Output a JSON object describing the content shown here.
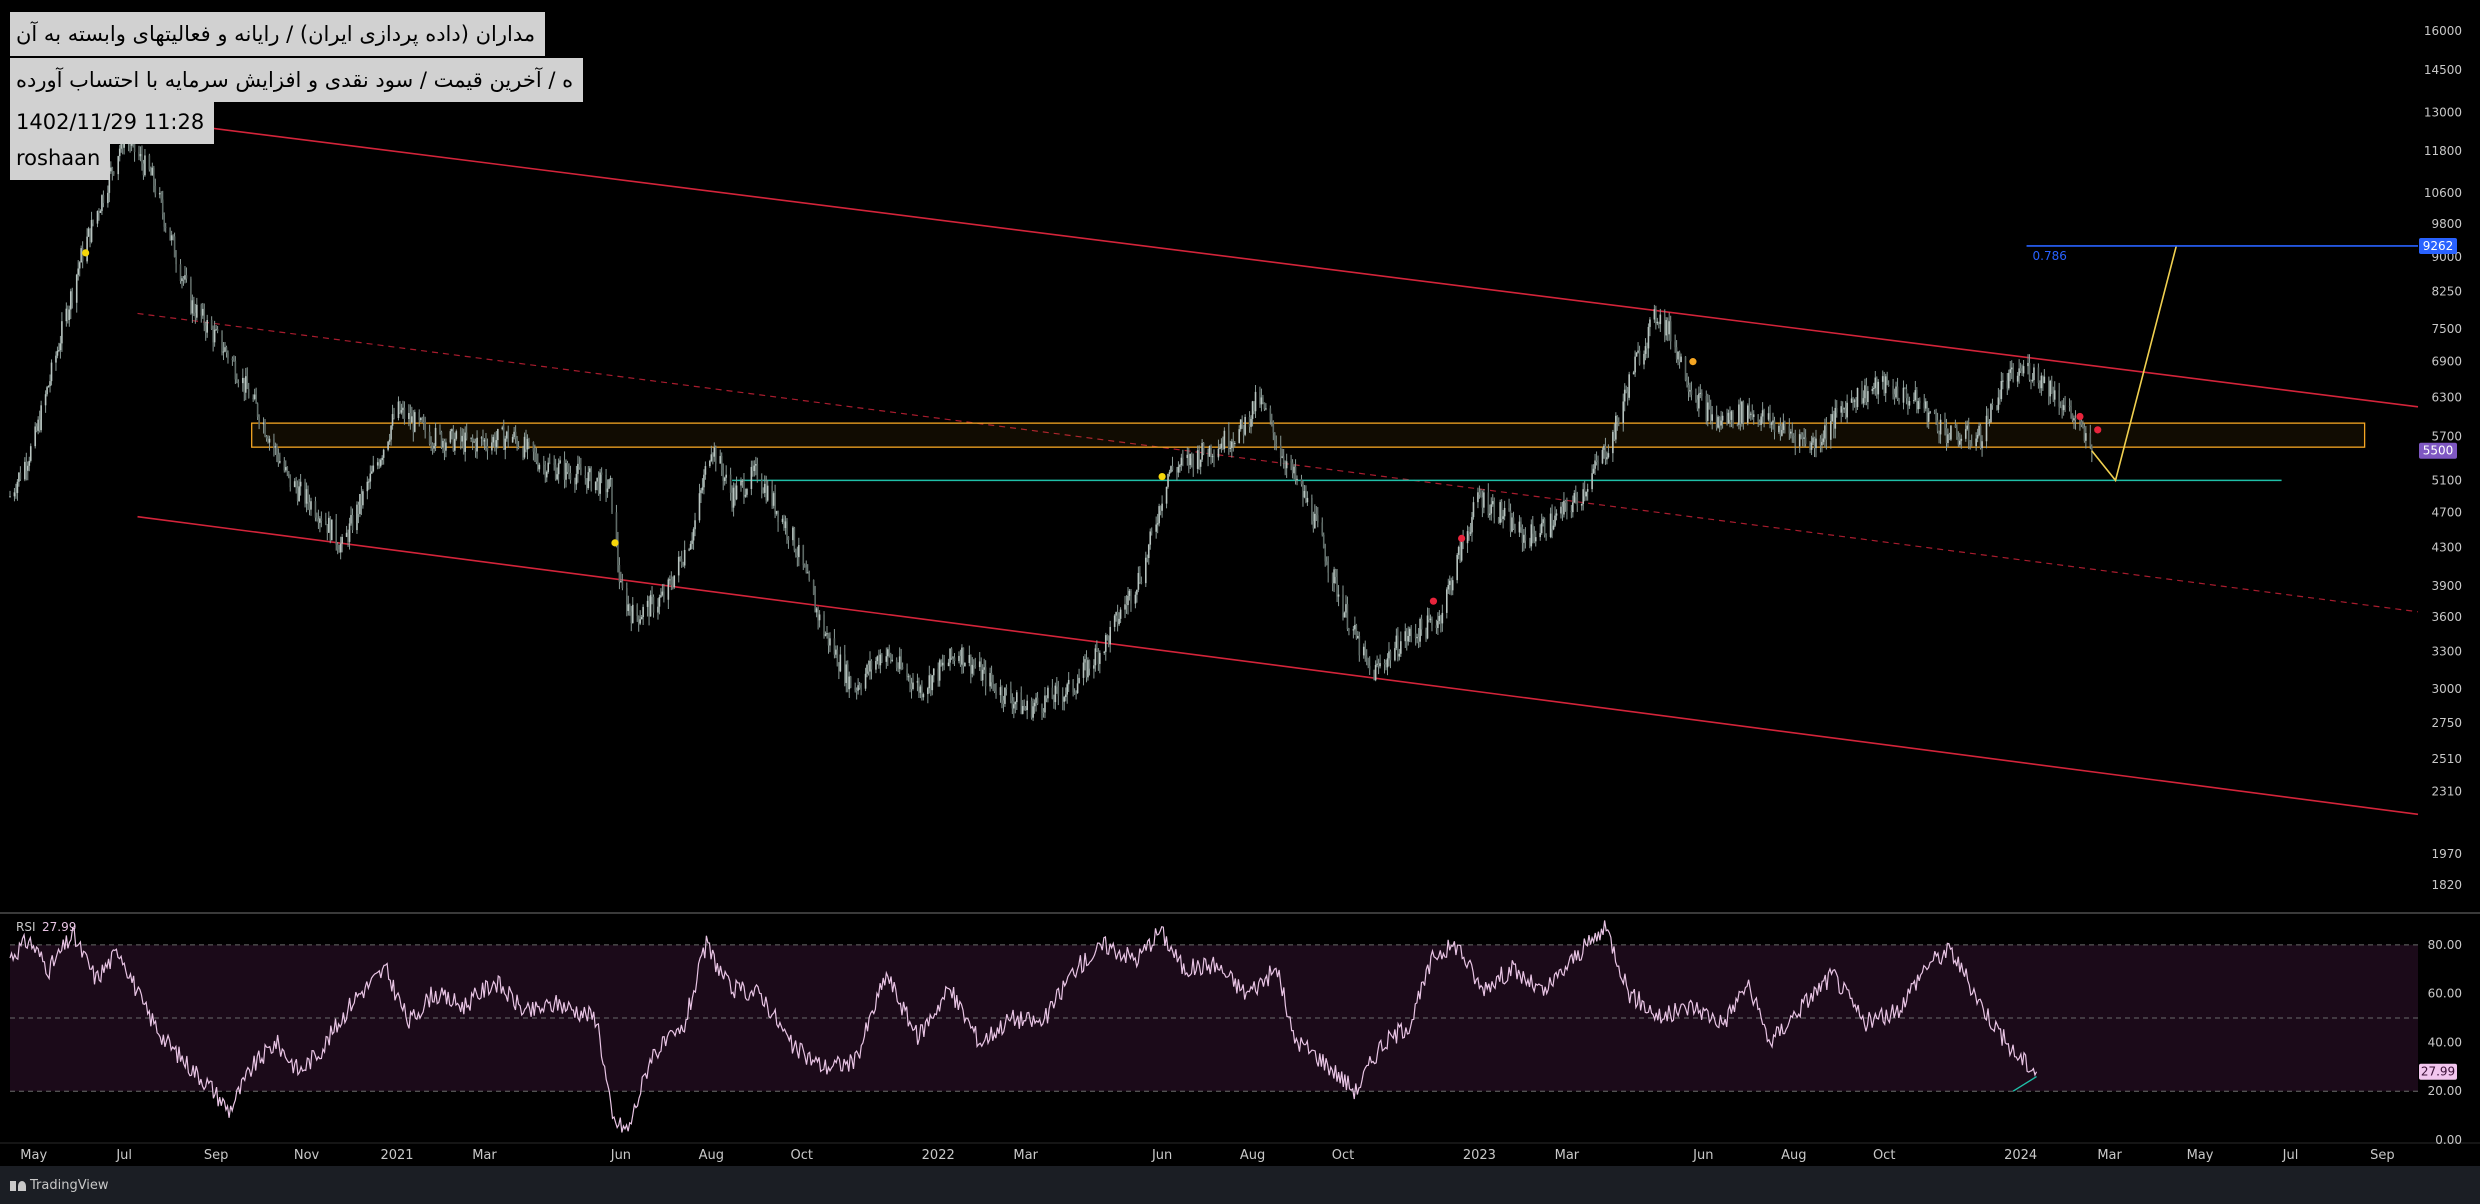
{
  "overlay": {
    "line1": "مداران (داده پردازی ایران) / رایانه و فعالیتهای وابسته به آن",
    "line2": "ه / آخرین قیمت / سود نقدی و افزایش سرمایه با احتساب آورده",
    "line3": "1402/11/29 11:28",
    "line4": "roshaan"
  },
  "brand": {
    "name": "TradingView"
  },
  "colors": {
    "background": "#000000",
    "candles": "#8a9a96",
    "channel": "#d3243a",
    "support_line": "#1fbfa8",
    "zone_border": "#f5a623",
    "projection": "#f0d050",
    "fib_line": "#2962ff",
    "rsi_line": "#e8c4e4",
    "rsi_band": "#1b0a19"
  },
  "chart_data": [
    {
      "type": "line",
      "scale": "log",
      "ylim": [
        1700,
        16800
      ],
      "yticks": [
        16000,
        14500,
        13000,
        11800,
        10600,
        9800,
        9000,
        8250,
        7500,
        6900,
        6300,
        5700,
        5100,
        4700,
        4300,
        3900,
        3600,
        3300,
        3000,
        2750,
        2510,
        2310,
        1970,
        1820
      ],
      "xticks": [
        "May",
        "Jul",
        "Sep",
        "Nov",
        "2021",
        "Mar",
        "Jun",
        "Aug",
        "Oct",
        "2022",
        "Mar",
        "Jun",
        "Aug",
        "Oct",
        "2023",
        "Mar",
        "Jun",
        "Aug",
        "Oct",
        "2024",
        "Mar",
        "May",
        "Jul",
        "Sep"
      ],
      "x_range": [
        "2020-04-15",
        "2024-09-25"
      ],
      "price_path": [
        [
          "2020-04-15",
          4900
        ],
        [
          "2020-05-01",
          5600
        ],
        [
          "2020-06-01",
          8900
        ],
        [
          "2020-07-01",
          12300
        ],
        [
          "2020-07-20",
          11000
        ],
        [
          "2020-08-15",
          8000
        ],
        [
          "2020-09-10",
          7000
        ],
        [
          "2020-10-01",
          6000
        ],
        [
          "2020-10-20",
          5100
        ],
        [
          "2020-11-10",
          4700
        ],
        [
          "2020-11-25",
          4300
        ],
        [
          "2020-12-20",
          5400
        ],
        [
          "2021-01-01",
          6100
        ],
        [
          "2021-01-25",
          5700
        ],
        [
          "2021-02-20",
          5600
        ],
        [
          "2021-03-20",
          5700
        ],
        [
          "2021-04-10",
          5300
        ],
        [
          "2021-05-01",
          5200
        ],
        [
          "2021-05-25",
          5000
        ],
        [
          "2021-06-01",
          3850
        ],
        [
          "2021-06-10",
          3600
        ],
        [
          "2021-07-01",
          3800
        ],
        [
          "2021-07-20",
          4500
        ],
        [
          "2021-08-01",
          5600
        ],
        [
          "2021-08-15",
          4900
        ],
        [
          "2021-09-01",
          5200
        ],
        [
          "2021-09-25",
          4400
        ],
        [
          "2021-10-15",
          3500
        ],
        [
          "2021-11-05",
          3000
        ],
        [
          "2021-11-25",
          3300
        ],
        [
          "2021-12-20",
          3000
        ],
        [
          "2022-01-15",
          3300
        ],
        [
          "2022-02-10",
          3000
        ],
        [
          "2022-03-01",
          2850
        ],
        [
          "2022-04-01",
          3000
        ],
        [
          "2022-04-25",
          3400
        ],
        [
          "2022-05-20",
          4100
        ],
        [
          "2022-06-05",
          5200
        ],
        [
          "2022-07-01",
          5500
        ],
        [
          "2022-07-25",
          5800
        ],
        [
          "2022-08-05",
          6300
        ],
        [
          "2022-08-20",
          5500
        ],
        [
          "2022-09-10",
          4700
        ],
        [
          "2022-10-01",
          3700
        ],
        [
          "2022-10-20",
          3100
        ],
        [
          "2022-11-10",
          3400
        ],
        [
          "2022-11-25",
          3500
        ],
        [
          "2022-12-05",
          3600
        ],
        [
          "2022-12-20",
          4300
        ],
        [
          "2023-01-01",
          4900
        ],
        [
          "2023-01-15",
          4700
        ],
        [
          "2023-02-01",
          4400
        ],
        [
          "2023-02-20",
          4600
        ],
        [
          "2023-03-10",
          4900
        ],
        [
          "2023-04-01",
          5700
        ],
        [
          "2023-04-15",
          6800
        ],
        [
          "2023-05-01",
          7800
        ],
        [
          "2023-05-10",
          7400
        ],
        [
          "2023-05-25",
          6400
        ],
        [
          "2023-06-10",
          5900
        ],
        [
          "2023-07-01",
          6100
        ],
        [
          "2023-07-25",
          5800
        ],
        [
          "2023-08-15",
          5600
        ],
        [
          "2023-09-10",
          6300
        ],
        [
          "2023-10-01",
          6500
        ],
        [
          "2023-10-25",
          6200
        ],
        [
          "2023-11-15",
          5700
        ],
        [
          "2023-12-05",
          5700
        ],
        [
          "2023-12-20",
          6500
        ],
        [
          "2024-01-05",
          6800
        ],
        [
          "2024-01-20",
          6500
        ],
        [
          "2024-02-05",
          6000
        ],
        [
          "2024-02-18",
          5500
        ]
      ],
      "channel_upper": [
        [
          "2020-07-10",
          12800
        ],
        [
          "2024-09-25",
          6150
        ]
      ],
      "channel_middle_dashed": [
        [
          "2020-07-10",
          7800
        ],
        [
          "2024-09-25",
          3650
        ]
      ],
      "channel_lower": [
        [
          "2020-07-10",
          4650
        ],
        [
          "2024-09-25",
          2180
        ]
      ],
      "resistance_zone": {
        "x": [
          "2020-09-25",
          "2024-08-20"
        ],
        "y": [
          5550,
          5900
        ]
      },
      "support_line": {
        "x": [
          "2021-08-15",
          "2024-06-25"
        ],
        "y": 5100
      },
      "projection": [
        [
          "2024-02-18",
          5500
        ],
        [
          "2024-03-05",
          5100
        ],
        [
          "2024-04-15",
          9262
        ]
      ],
      "fib_level": {
        "label": "0.786",
        "value": 9262,
        "x_start": "2024-01-05"
      },
      "price_labels": [
        {
          "text": "9262",
          "value": 9262,
          "color": "#2962ff"
        },
        {
          "text": "5500",
          "value": 5500,
          "color": "#7e57c2"
        }
      ],
      "signal_dots": [
        {
          "date": "2020-06-05",
          "value": 9100,
          "color": "#f5d60a"
        },
        {
          "date": "2021-05-28",
          "value": 4350,
          "color": "#f5d60a"
        },
        {
          "date": "2022-06-01",
          "value": 5150,
          "color": "#f5d60a"
        },
        {
          "date": "2022-12-01",
          "value": 3750,
          "color": "#e8243c"
        },
        {
          "date": "2022-12-20",
          "value": 4400,
          "color": "#e8243c"
        },
        {
          "date": "2023-05-25",
          "value": 6900,
          "color": "#f5a623"
        },
        {
          "date": "2024-02-10",
          "value": 6000,
          "color": "#e8243c"
        },
        {
          "date": "2024-02-22",
          "value": 5800,
          "color": "#e8243c"
        }
      ]
    },
    {
      "type": "line",
      "title": "RSI",
      "last_value": 27.99,
      "ylim": [
        0,
        91
      ],
      "yticks": [
        80.0,
        60.0,
        40.0,
        20.0,
        0.0
      ],
      "band": [
        20,
        80
      ],
      "midline": 50,
      "series": [
        {
          "values": [
            [
              0,
              75
            ],
            [
              12,
              82
            ],
            [
              25,
              70
            ],
            [
              40,
              84
            ],
            [
              55,
              66
            ],
            [
              70,
              78
            ],
            [
              85,
              55
            ],
            [
              100,
              40
            ],
            [
              115,
              30
            ],
            [
              128,
              22
            ],
            [
              140,
              12
            ],
            [
              155,
              30
            ],
            [
              170,
              40
            ],
            [
              185,
              28
            ],
            [
              200,
              38
            ],
            [
              220,
              58
            ],
            [
              240,
              70
            ],
            [
              255,
              48
            ],
            [
              270,
              60
            ],
            [
              290,
              55
            ],
            [
              310,
              65
            ],
            [
              330,
              52
            ],
            [
              350,
              56
            ],
            [
              375,
              50
            ],
            [
              385,
              8
            ],
            [
              395,
              4
            ],
            [
              410,
              35
            ],
            [
              430,
              45
            ],
            [
              445,
              80
            ],
            [
              460,
              62
            ],
            [
              480,
              60
            ],
            [
              500,
              38
            ],
            [
              520,
              30
            ],
            [
              540,
              32
            ],
            [
              560,
              68
            ],
            [
              580,
              42
            ],
            [
              600,
              62
            ],
            [
              620,
              40
            ],
            [
              640,
              50
            ],
            [
              660,
              48
            ],
            [
              680,
              70
            ],
            [
              700,
              80
            ],
            [
              720,
              74
            ],
            [
              735,
              86
            ],
            [
              750,
              70
            ],
            [
              770,
              72
            ],
            [
              790,
              60
            ],
            [
              810,
              70
            ],
            [
              820,
              42
            ],
            [
              840,
              32
            ],
            [
              860,
              20
            ],
            [
              875,
              38
            ],
            [
              895,
              48
            ],
            [
              910,
              76
            ],
            [
              925,
              80
            ],
            [
              940,
              62
            ],
            [
              960,
              70
            ],
            [
              980,
              60
            ],
            [
              1000,
              75
            ],
            [
              1020,
              87
            ],
            [
              1035,
              60
            ],
            [
              1055,
              50
            ],
            [
              1075,
              55
            ],
            [
              1095,
              48
            ],
            [
              1110,
              64
            ],
            [
              1125,
              40
            ],
            [
              1145,
              55
            ],
            [
              1165,
              68
            ],
            [
              1185,
              48
            ],
            [
              1205,
              52
            ],
            [
              1225,
              72
            ],
            [
              1240,
              78
            ],
            [
              1260,
              55
            ],
            [
              1280,
              36
            ],
            [
              1295,
              27.99
            ]
          ]
        }
      ]
    }
  ]
}
